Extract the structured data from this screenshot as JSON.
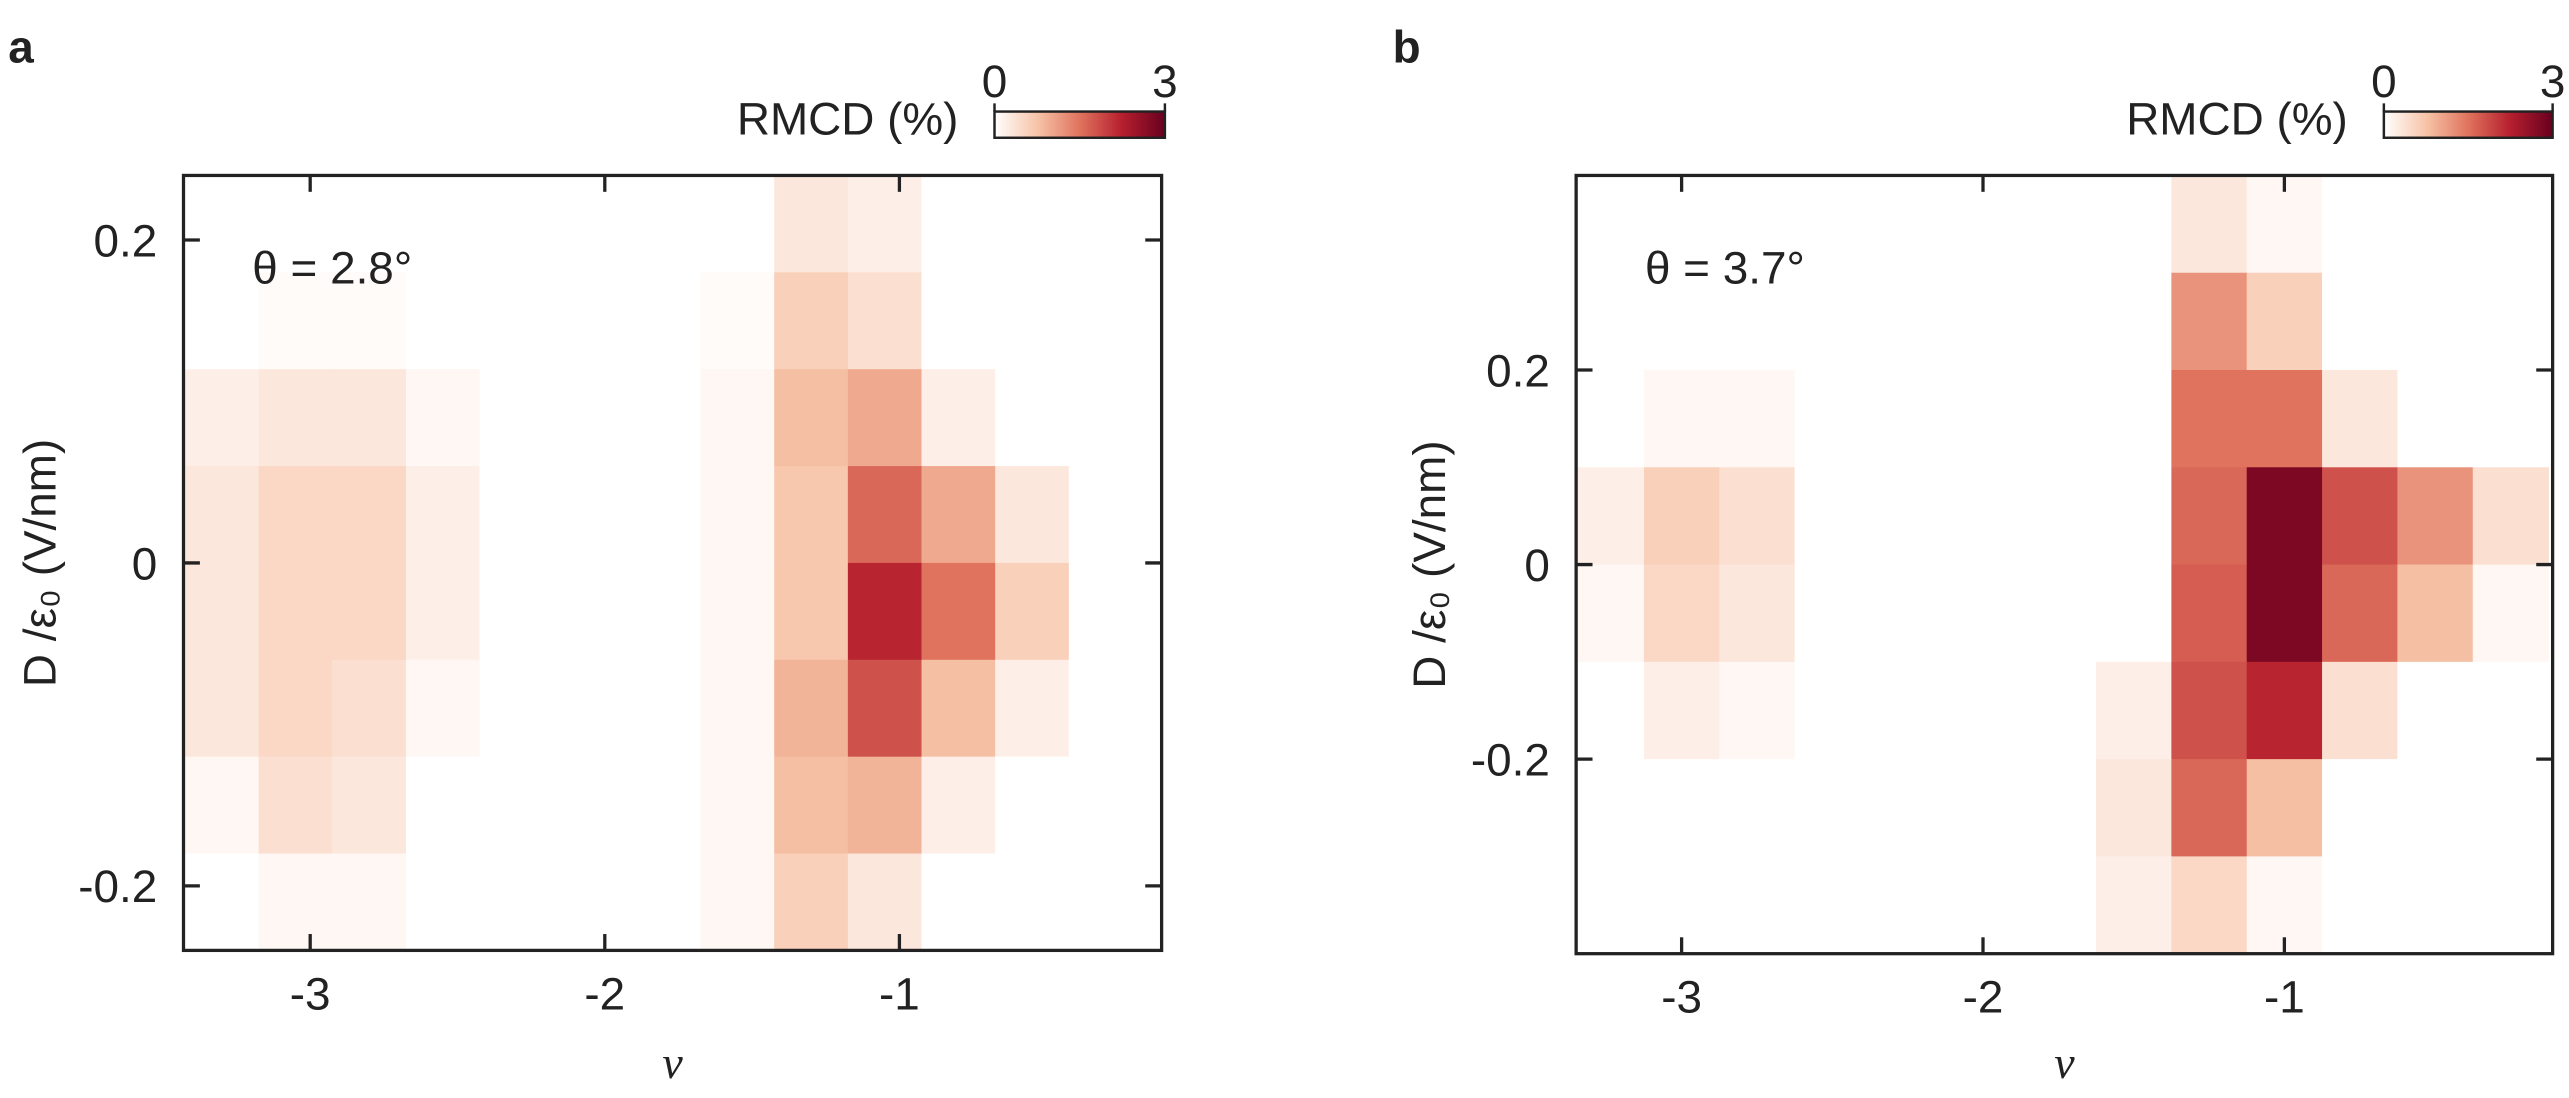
{
  "chart_data": [
    {
      "type": "heatmap",
      "panel_label": "a",
      "colorbar_label": "RMCD (%)",
      "annotation": "θ = 2.8°",
      "xlabel": "ν",
      "ylabel": "D /ε₀ (V/nm)",
      "xlim": [
        -3.43,
        -0.11
      ],
      "ylim": [
        -0.24,
        0.24
      ],
      "xticks": [
        -3,
        -2,
        -1
      ],
      "yticks": [
        -0.2,
        0,
        0.2
      ],
      "clim": [
        0,
        3
      ],
      "colorbar_ticks": [
        0,
        3
      ],
      "colormap": [
        "#ffffff",
        "#f7c4a8",
        "#e0735e",
        "#b51f2e",
        "#67001f"
      ],
      "x": [
        -3.3,
        -3.05,
        -2.8,
        -2.55,
        -2.3,
        -2.05,
        -1.8,
        -1.55,
        -1.3,
        -1.05,
        -0.8,
        -0.55,
        -0.3
      ],
      "y": [
        0.21,
        0.15,
        0.09,
        0.03,
        -0.03,
        -0.09,
        -0.15,
        -0.21
      ],
      "z": [
        [
          0,
          0,
          0,
          0,
          0,
          0,
          0,
          0,
          0.3,
          0.2,
          0,
          0,
          0
        ],
        [
          0,
          0.05,
          0.05,
          0,
          0,
          0,
          0,
          0.05,
          0.6,
          0.4,
          0,
          0,
          0
        ],
        [
          0.2,
          0.3,
          0.3,
          0.1,
          0,
          0,
          0,
          0.1,
          0.8,
          1.0,
          0.2,
          0,
          0
        ],
        [
          0.3,
          0.5,
          0.5,
          0.2,
          0,
          0,
          0,
          0.1,
          0.7,
          1.6,
          1.0,
          0.3,
          0
        ],
        [
          0.3,
          0.5,
          0.5,
          0.2,
          0,
          0,
          0,
          0.1,
          0.7,
          2.2,
          1.5,
          0.6,
          0
        ],
        [
          0.3,
          0.5,
          0.4,
          0.1,
          0,
          0,
          0,
          0.1,
          0.9,
          1.8,
          0.8,
          0.2,
          0
        ],
        [
          0.1,
          0.4,
          0.3,
          0,
          0,
          0,
          0,
          0.1,
          0.8,
          0.9,
          0.2,
          0,
          0
        ],
        [
          0,
          0.1,
          0.1,
          0,
          0,
          0,
          0,
          0.1,
          0.6,
          0.3,
          0,
          0,
          0
        ]
      ]
    },
    {
      "type": "heatmap",
      "panel_label": "b",
      "colorbar_label": "RMCD (%)",
      "annotation": "θ = 3.7°",
      "xlabel": "ν",
      "ylabel": "D /ε₀ (V/nm)",
      "xlim": [
        -3.35,
        -0.11
      ],
      "ylim": [
        -0.4,
        0.4
      ],
      "xticks": [
        -3,
        -2,
        -1
      ],
      "yticks": [
        -0.2,
        0,
        0.2
      ],
      "clim": [
        0,
        3
      ],
      "colorbar_ticks": [
        0,
        3
      ],
      "colormap": [
        "#ffffff",
        "#f7c4a8",
        "#e0735e",
        "#b51f2e",
        "#67001f"
      ],
      "x": [
        -3.25,
        -3.0,
        -2.75,
        -2.5,
        -2.25,
        -2.0,
        -1.75,
        -1.5,
        -1.25,
        -1.0,
        -0.75,
        -0.5,
        -0.25
      ],
      "y": [
        0.35,
        0.25,
        0.15,
        0.05,
        -0.05,
        -0.15,
        -0.25,
        -0.35
      ],
      "z": [
        [
          0,
          0,
          0,
          0,
          0,
          0,
          0,
          0,
          0.3,
          0.1,
          0,
          0,
          0
        ],
        [
          0,
          0,
          0,
          0,
          0,
          0,
          0,
          0,
          1.2,
          0.6,
          0,
          0,
          0
        ],
        [
          0,
          0.1,
          0.1,
          0,
          0,
          0,
          0,
          0,
          1.5,
          1.5,
          0.3,
          0,
          0
        ],
        [
          0.2,
          0.6,
          0.4,
          0,
          0,
          0,
          0,
          0,
          1.6,
          2.8,
          1.8,
          1.2,
          0.4
        ],
        [
          0.1,
          0.5,
          0.3,
          0,
          0,
          0,
          0,
          0,
          1.7,
          2.8,
          1.6,
          0.8,
          0.1
        ],
        [
          0,
          0.2,
          0.1,
          0,
          0,
          0,
          0,
          0.2,
          1.8,
          2.2,
          0.4,
          0,
          0
        ],
        [
          0,
          0,
          0,
          0,
          0,
          0,
          0,
          0.3,
          1.6,
          0.8,
          0,
          0,
          0
        ],
        [
          0,
          0,
          0,
          0,
          0,
          0,
          0,
          0.2,
          0.5,
          0.1,
          0,
          0,
          0
        ]
      ]
    }
  ]
}
